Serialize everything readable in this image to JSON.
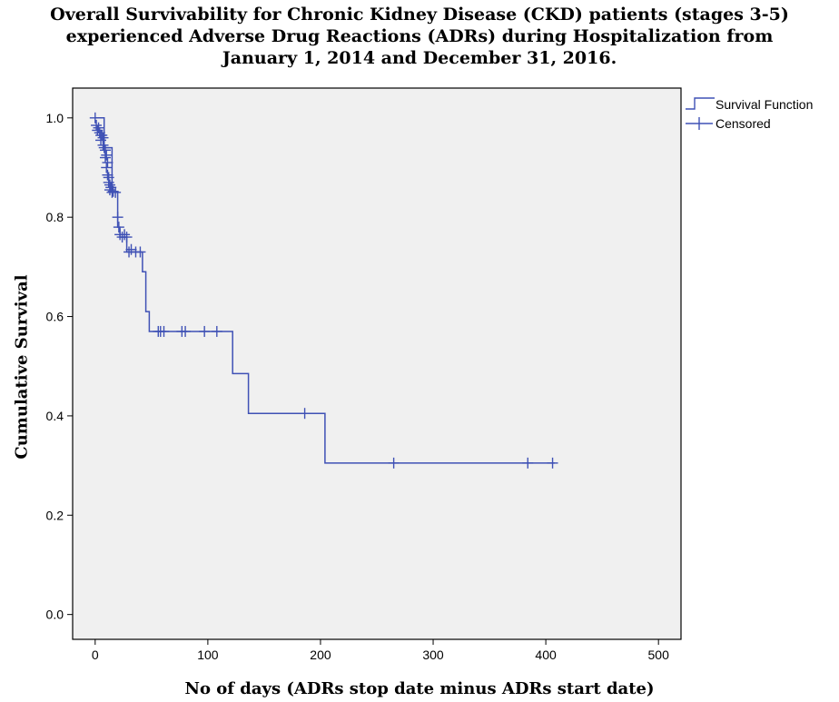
{
  "chart_data": {
    "type": "line",
    "title_lines": [
      "Overall Survivability for Chronic Kidney Disease (CKD) patients (stages 3-5)",
      "experienced Adverse Drug Reactions (ADRs) during Hospitalization from",
      "January 1, 2014 and December 31, 2016."
    ],
    "xlabel": "No of days (ADRs stop date minus ADRs start date)",
    "ylabel": "Cumulative Survival",
    "xlim": [
      -20,
      520
    ],
    "ylim": [
      -0.05,
      1.06
    ],
    "x_ticks": [
      0,
      100,
      200,
      300,
      400,
      500
    ],
    "y_ticks": [
      0.0,
      0.2,
      0.4,
      0.6,
      0.8,
      1.0
    ],
    "x_tick_labels": [
      "0",
      "100",
      "200",
      "300",
      "400",
      "500"
    ],
    "y_tick_labels": [
      "0.0",
      "0.2",
      "0.4",
      "0.6",
      "0.8",
      "1.0"
    ],
    "grid": false,
    "legend_position": "outside-top-right",
    "legend": [
      {
        "label": "Survival Function",
        "marker": "step-line"
      },
      {
        "label": "Censored",
        "marker": "plus"
      }
    ],
    "colors": {
      "series": "#3f51b5",
      "plot_background": "#f0f0f0",
      "axis": "#000000"
    },
    "series": [
      {
        "name": "Survival Function",
        "step_points": [
          [
            0,
            1.0
          ],
          [
            8,
            1.0
          ],
          [
            8,
            0.94
          ],
          [
            15,
            0.94
          ],
          [
            15,
            0.85
          ],
          [
            20,
            0.85
          ],
          [
            20,
            0.78
          ],
          [
            22,
            0.78
          ],
          [
            22,
            0.76
          ],
          [
            28,
            0.76
          ],
          [
            28,
            0.73
          ],
          [
            42,
            0.73
          ],
          [
            42,
            0.69
          ],
          [
            45,
            0.69
          ],
          [
            45,
            0.61
          ],
          [
            48,
            0.61
          ],
          [
            48,
            0.57
          ],
          [
            122,
            0.57
          ],
          [
            122,
            0.485
          ],
          [
            136,
            0.485
          ],
          [
            136,
            0.405
          ],
          [
            204,
            0.405
          ],
          [
            204,
            0.305
          ],
          [
            408,
            0.305
          ]
        ]
      },
      {
        "name": "Censored",
        "points": [
          [
            0,
            1.0
          ],
          [
            1,
            0.985
          ],
          [
            2,
            0.975
          ],
          [
            3,
            0.98
          ],
          [
            4,
            0.97
          ],
          [
            5,
            0.965
          ],
          [
            5,
            0.955
          ],
          [
            6,
            0.965
          ],
          [
            7,
            0.96
          ],
          [
            7,
            0.945
          ],
          [
            8,
            0.94
          ],
          [
            9,
            0.935
          ],
          [
            9,
            0.92
          ],
          [
            10,
            0.925
          ],
          [
            10,
            0.9
          ],
          [
            11,
            0.91
          ],
          [
            11,
            0.885
          ],
          [
            12,
            0.88
          ],
          [
            12,
            0.87
          ],
          [
            13,
            0.865
          ],
          [
            13,
            0.855
          ],
          [
            14,
            0.86
          ],
          [
            15,
            0.85
          ],
          [
            16,
            0.852
          ],
          [
            18,
            0.85
          ],
          [
            20,
            0.8
          ],
          [
            21,
            0.78
          ],
          [
            22,
            0.765
          ],
          [
            24,
            0.76
          ],
          [
            26,
            0.765
          ],
          [
            28,
            0.76
          ],
          [
            30,
            0.73
          ],
          [
            32,
            0.735
          ],
          [
            36,
            0.73
          ],
          [
            40,
            0.73
          ],
          [
            56,
            0.57
          ],
          [
            58,
            0.57
          ],
          [
            61,
            0.57
          ],
          [
            77,
            0.57
          ],
          [
            80,
            0.57
          ],
          [
            97,
            0.57
          ],
          [
            108,
            0.57
          ],
          [
            186,
            0.405
          ],
          [
            265,
            0.305
          ],
          [
            384,
            0.305
          ],
          [
            406,
            0.305
          ]
        ]
      }
    ]
  }
}
